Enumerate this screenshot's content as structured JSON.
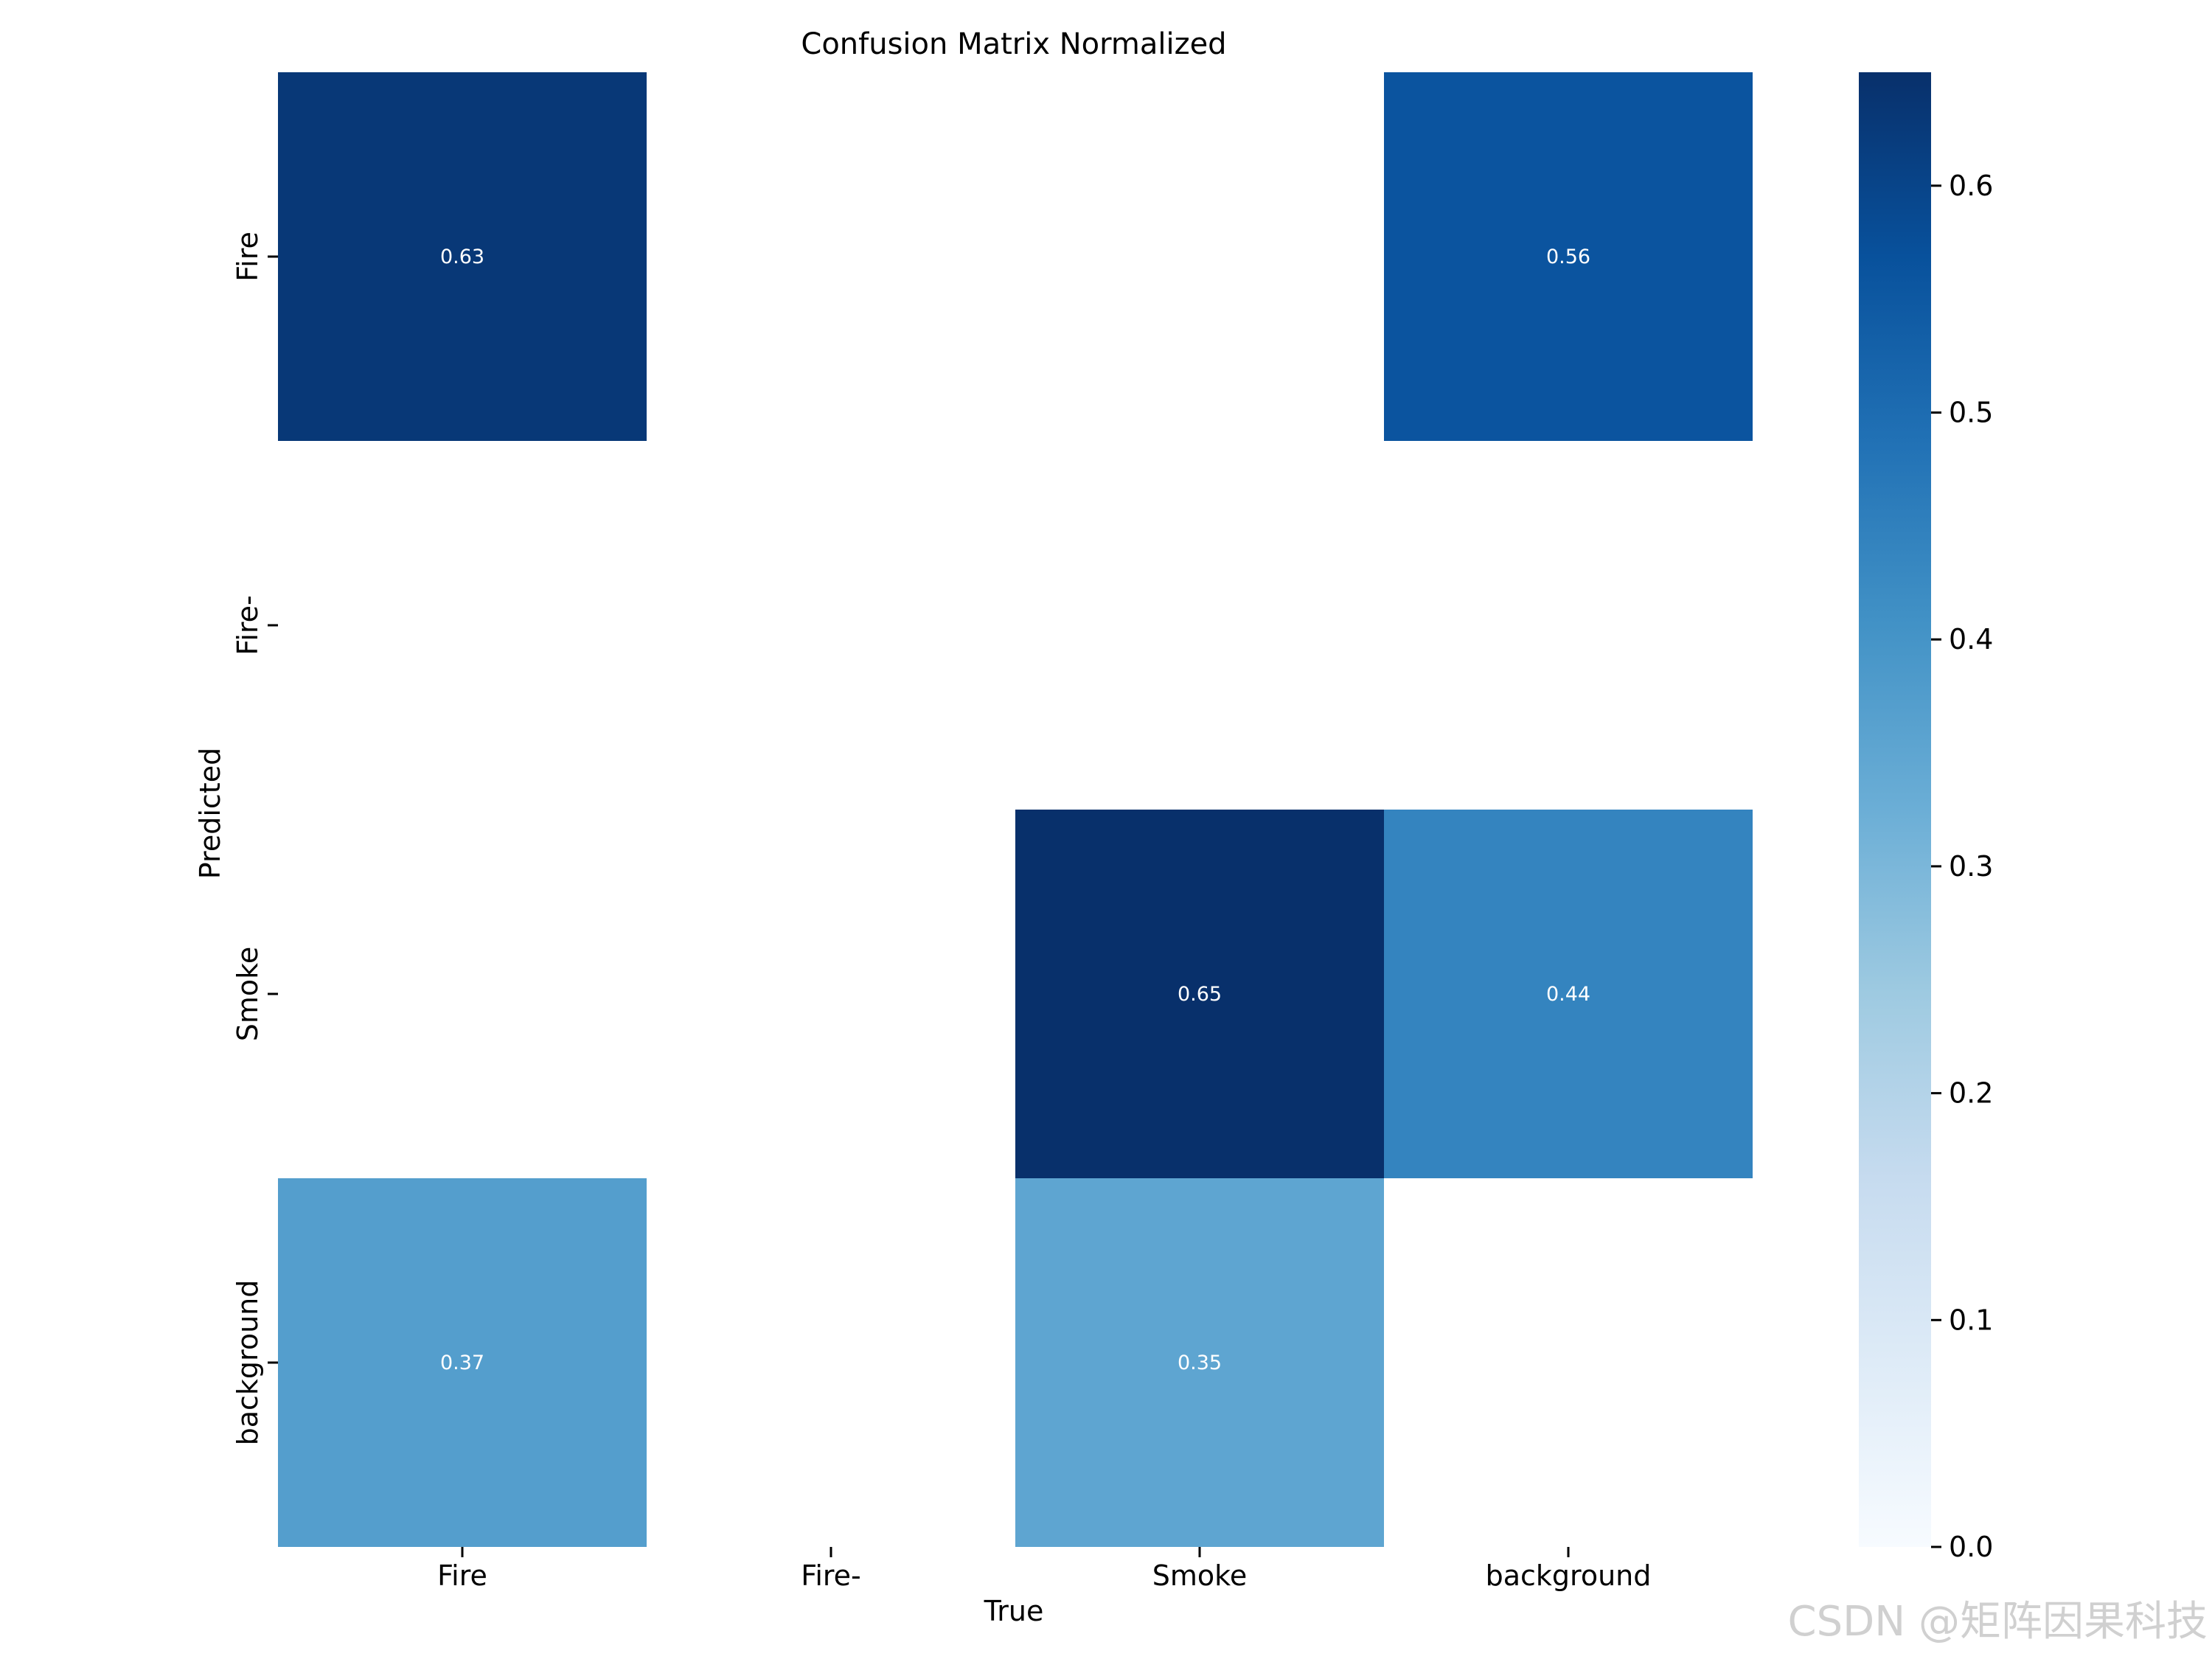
{
  "watermark": "CSDN @矩阵因果科技",
  "chart_data": {
    "type": "heatmap",
    "title": "Confusion Matrix Normalized",
    "xlabel": "True",
    "ylabel": "Predicted",
    "x_categories": [
      "Fire",
      "Fire-",
      "Smoke",
      "background"
    ],
    "y_categories": [
      "Fire",
      "Fire-",
      "Smoke",
      "background"
    ],
    "values": [
      [
        0.63,
        null,
        null,
        0.56
      ],
      [
        null,
        null,
        null,
        null
      ],
      [
        null,
        null,
        0.65,
        0.44
      ],
      [
        0.37,
        null,
        0.35,
        null
      ]
    ],
    "value_labels": [
      [
        "0.63",
        "",
        "",
        "0.56"
      ],
      [
        "",
        "",
        "",
        ""
      ],
      [
        "",
        "",
        "0.65",
        "0.44"
      ],
      [
        "0.37",
        "",
        "0.35",
        ""
      ]
    ],
    "colormap": "Blues",
    "colorbar": {
      "range": [
        0.0,
        0.65
      ],
      "ticks": [
        0.0,
        0.1,
        0.2,
        0.3,
        0.4,
        0.5,
        0.6
      ],
      "tick_labels": [
        "0.0",
        "0.1",
        "0.2",
        "0.3",
        "0.4",
        "0.5",
        "0.6"
      ]
    },
    "grid": false,
    "legend": "colorbar-right"
  }
}
